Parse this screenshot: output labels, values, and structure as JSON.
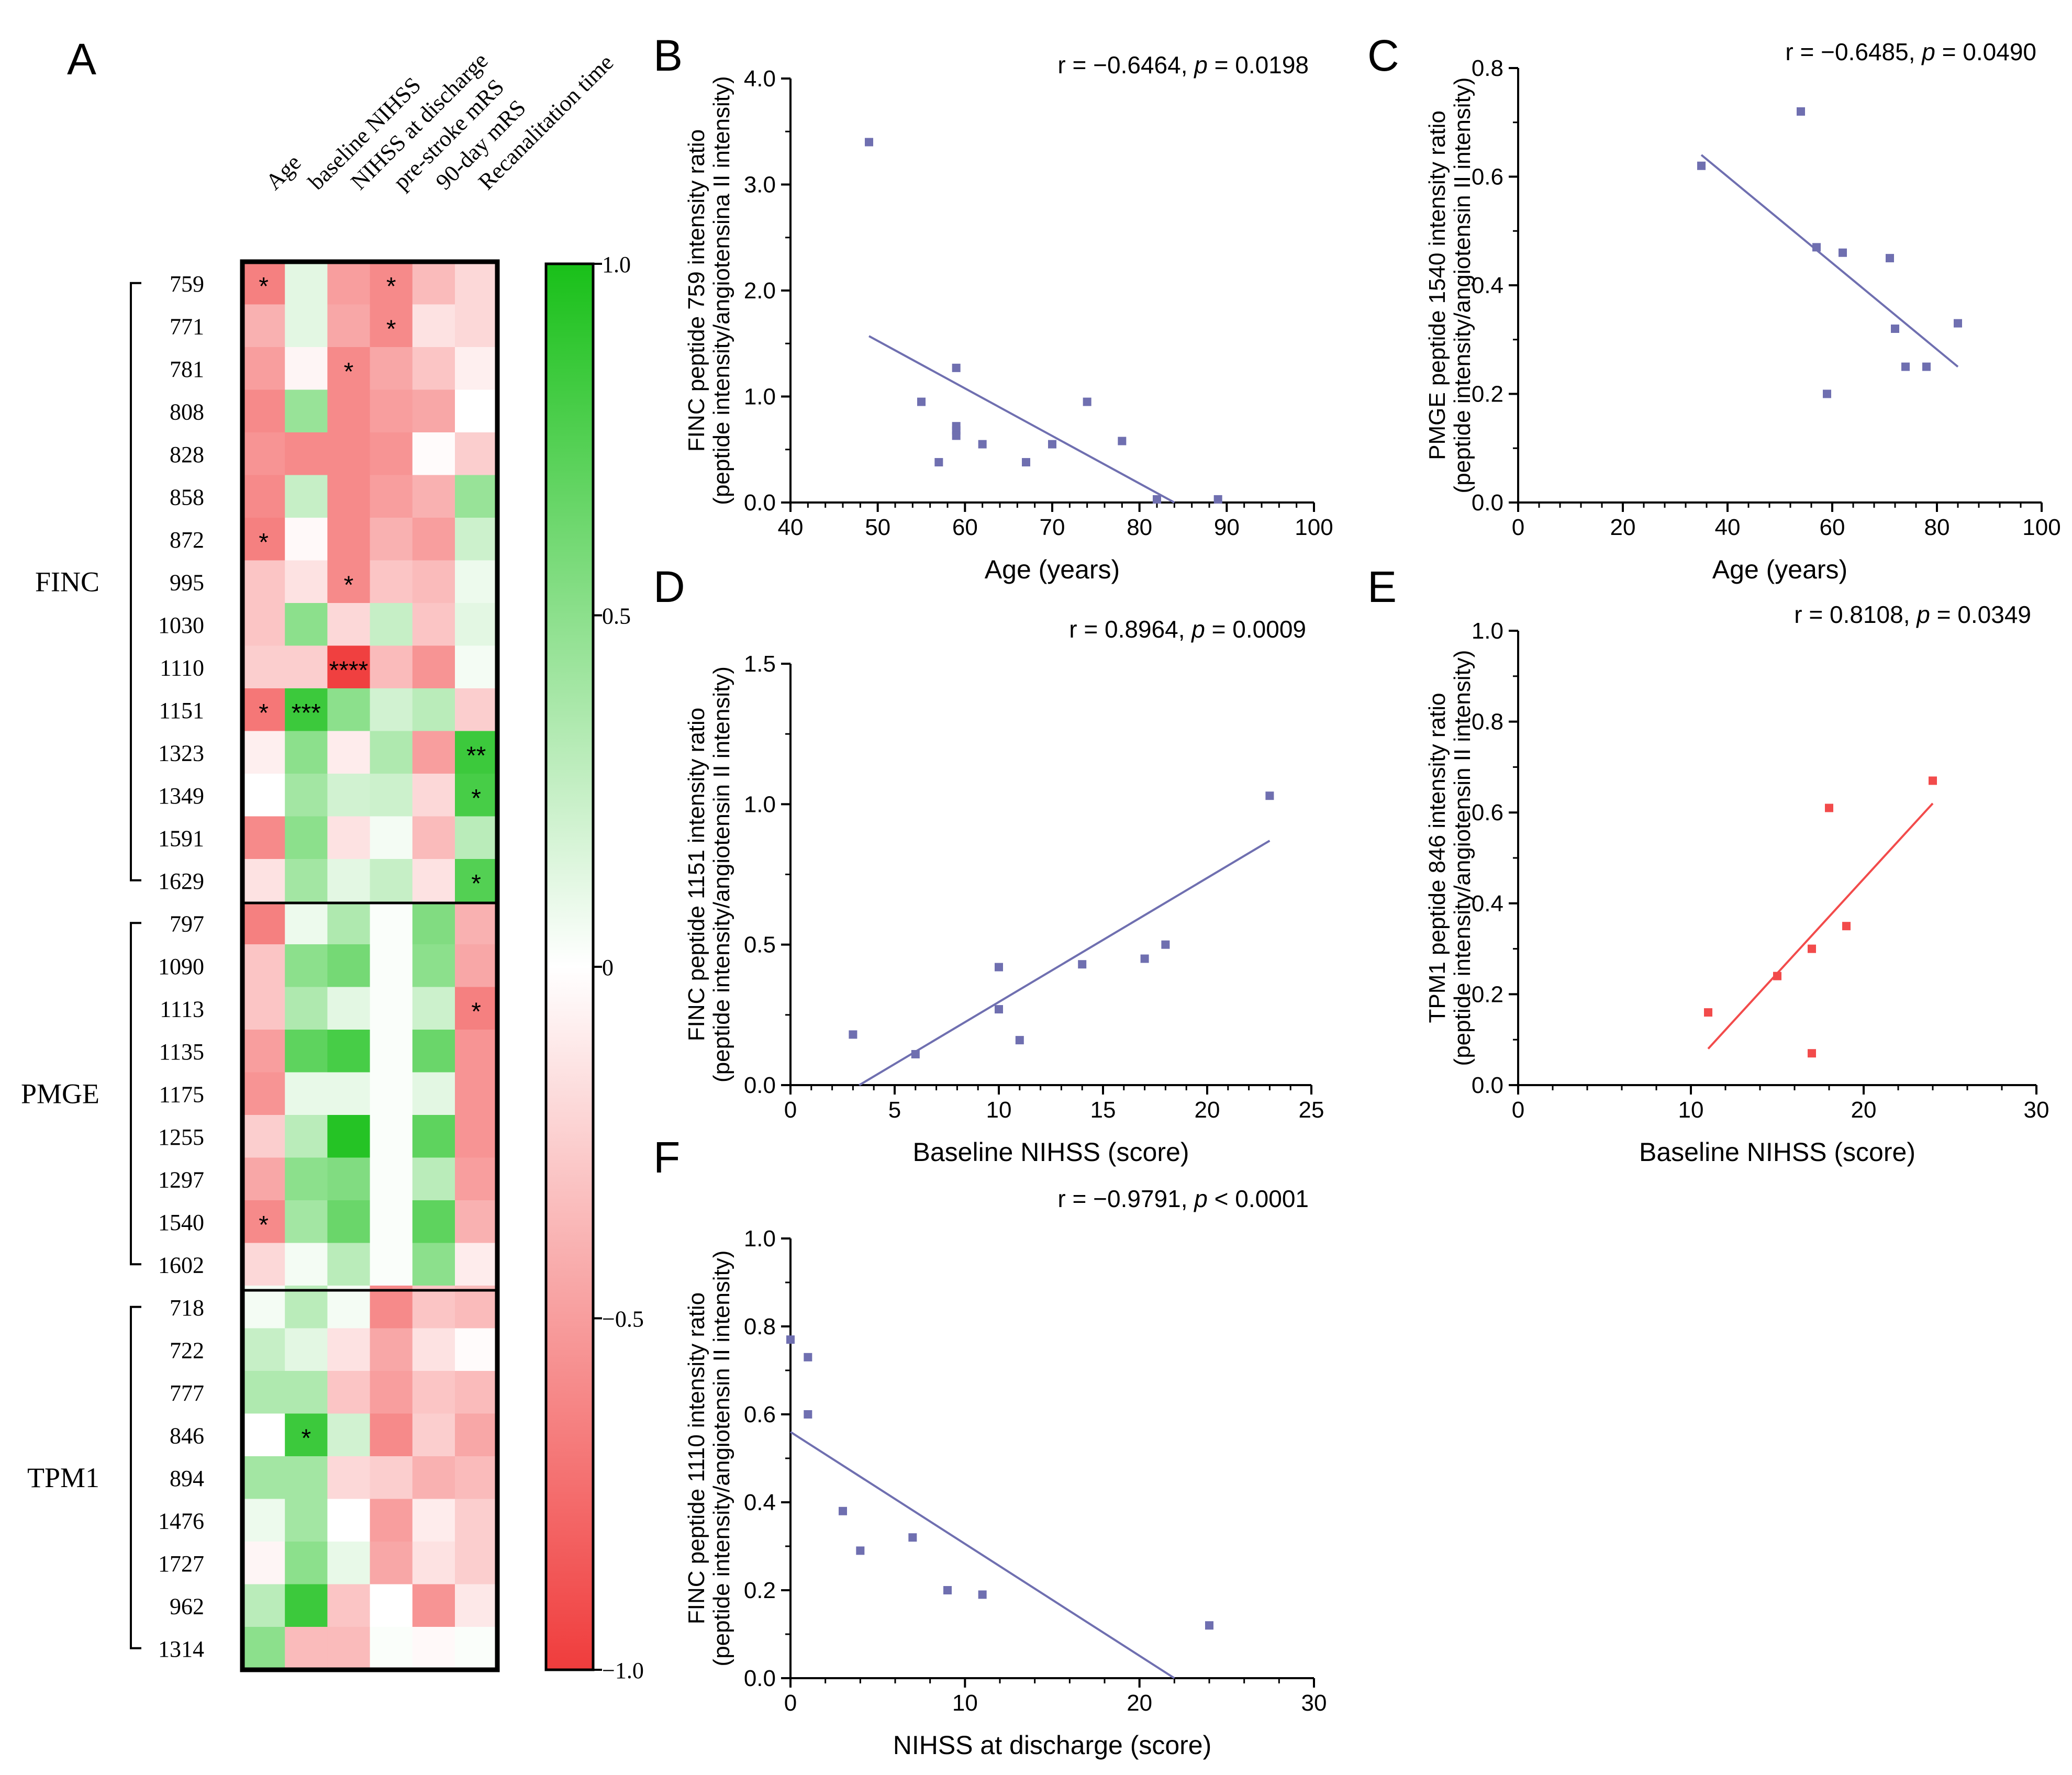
{
  "chart_data": [
    {
      "panel": "A",
      "type": "heatmap",
      "columns": [
        "Age",
        "baseline NIHSS",
        "NIHSS at discharge",
        "pre-stroke mRS",
        "90-day mRS",
        "Recanalitation time"
      ],
      "groups": [
        {
          "name": "FINC",
          "rows": [
            "759",
            "771",
            "781",
            "808",
            "828",
            "858",
            "872",
            "995",
            "1030",
            "1110",
            "1151",
            "1323",
            "1349",
            "1591",
            "1629"
          ]
        },
        {
          "name": "PMGE",
          "rows": [
            "797",
            "1090",
            "1113",
            "1135",
            "1175",
            "1255",
            "1297",
            "1540",
            "1602"
          ]
        },
        {
          "name": "TPM1",
          "rows": [
            "718",
            "722",
            "777",
            "846",
            "894",
            "1476",
            "1727",
            "962",
            "1314"
          ]
        }
      ],
      "values": [
        [
          -0.65,
          0.12,
          -0.5,
          -0.6,
          -0.35,
          -0.2
        ],
        [
          -0.4,
          0.12,
          -0.45,
          -0.6,
          -0.15,
          -0.2
        ],
        [
          -0.5,
          -0.05,
          -0.6,
          -0.45,
          -0.3,
          -0.08
        ],
        [
          -0.6,
          0.45,
          -0.6,
          -0.5,
          -0.45,
          0.0
        ],
        [
          -0.55,
          -0.6,
          -0.6,
          -0.55,
          -0.02,
          -0.25
        ],
        [
          -0.6,
          0.25,
          -0.6,
          -0.5,
          -0.4,
          0.45
        ],
        [
          -0.65,
          -0.03,
          -0.6,
          -0.4,
          -0.5,
          0.22
        ],
        [
          -0.3,
          -0.15,
          -0.6,
          -0.3,
          -0.35,
          0.08
        ],
        [
          -0.3,
          0.5,
          -0.2,
          0.25,
          -0.3,
          0.12
        ],
        [
          -0.25,
          -0.25,
          -0.98,
          -0.35,
          -0.55,
          0.05
        ],
        [
          -0.7,
          0.85,
          0.5,
          0.2,
          0.3,
          -0.25
        ],
        [
          -0.08,
          0.5,
          -0.1,
          0.35,
          -0.5,
          0.85
        ],
        [
          0.0,
          0.4,
          0.2,
          0.22,
          -0.2,
          0.8
        ],
        [
          -0.6,
          0.5,
          -0.15,
          0.05,
          -0.35,
          0.3
        ],
        [
          -0.15,
          0.4,
          0.12,
          0.25,
          -0.15,
          0.75
        ],
        [
          -0.65,
          0.08,
          0.35,
          0.02,
          0.55,
          -0.4
        ],
        [
          -0.3,
          0.5,
          0.6,
          0.02,
          0.5,
          -0.45
        ],
        [
          -0.3,
          0.35,
          0.12,
          0.02,
          0.22,
          -0.65
        ],
        [
          -0.5,
          0.7,
          0.8,
          0.02,
          0.65,
          -0.55
        ],
        [
          -0.55,
          0.1,
          0.1,
          0.02,
          0.12,
          -0.55
        ],
        [
          -0.25,
          0.3,
          0.95,
          0.02,
          0.7,
          -0.55
        ],
        [
          -0.45,
          0.5,
          0.55,
          0.02,
          0.3,
          -0.5
        ],
        [
          -0.6,
          0.4,
          0.65,
          0.02,
          0.7,
          -0.4
        ],
        [
          -0.2,
          0.05,
          0.3,
          0.02,
          0.5,
          -0.1
        ],
        [
          0.05,
          0.3,
          0.05,
          -0.6,
          -0.3,
          -0.35
        ],
        [
          0.25,
          0.12,
          -0.15,
          -0.45,
          -0.15,
          -0.02
        ],
        [
          0.35,
          0.35,
          -0.3,
          -0.5,
          -0.3,
          -0.35
        ],
        [
          0.0,
          0.85,
          0.2,
          -0.6,
          -0.25,
          -0.45
        ],
        [
          0.4,
          0.4,
          -0.2,
          -0.25,
          -0.4,
          -0.35
        ],
        [
          0.08,
          0.4,
          0.0,
          -0.5,
          -0.1,
          -0.25
        ],
        [
          -0.05,
          0.5,
          0.1,
          -0.45,
          -0.15,
          -0.25
        ],
        [
          0.3,
          0.85,
          -0.3,
          0.0,
          -0.55,
          -0.12
        ],
        [
          0.5,
          -0.35,
          -0.35,
          0.02,
          -0.03,
          0.02
        ]
      ],
      "stars": [
        {
          "row": 0,
          "col": 0,
          "text": "*"
        },
        {
          "row": 0,
          "col": 3,
          "text": "*"
        },
        {
          "row": 1,
          "col": 3,
          "text": "*"
        },
        {
          "row": 2,
          "col": 2,
          "text": "*"
        },
        {
          "row": 6,
          "col": 0,
          "text": "*"
        },
        {
          "row": 7,
          "col": 2,
          "text": "*"
        },
        {
          "row": 9,
          "col": 2,
          "text": "****"
        },
        {
          "row": 10,
          "col": 0,
          "text": "*"
        },
        {
          "row": 10,
          "col": 1,
          "text": "***"
        },
        {
          "row": 11,
          "col": 5,
          "text": "**"
        },
        {
          "row": 12,
          "col": 5,
          "text": "*"
        },
        {
          "row": 14,
          "col": 5,
          "text": "*"
        },
        {
          "row": 17,
          "col": 5,
          "text": "*"
        },
        {
          "row": 22,
          "col": 0,
          "text": "*"
        },
        {
          "row": 27,
          "col": 1,
          "text": "*"
        }
      ],
      "colorbar": {
        "min": -1.0,
        "max": 1.0,
        "ticks": [
          "1.0",
          "0.5",
          "0",
          "−0.5",
          "−1.0"
        ],
        "low_color": "#f03c3c",
        "mid_color": "#ffffff",
        "high_color": "#19c019"
      }
    },
    {
      "panel": "B",
      "type": "scatter",
      "annotation_r": "r = −0.6464, ",
      "annotation_p_label": "p",
      "annotation_p": " = 0.0198",
      "xlabel": "Age (years)",
      "ylabel_1": "FINC peptide 759 intensity ratio",
      "ylabel_2": "(peptide intensity/angiotensina II intensity)",
      "xlim": [
        40,
        100
      ],
      "ylim": [
        0,
        4
      ],
      "xticks": [
        "40",
        "50",
        "60",
        "70",
        "80",
        "90",
        "100"
      ],
      "yticks": [
        "0.0",
        "1.0",
        "2.0",
        "3.0",
        "4.0"
      ],
      "points": [
        [
          49,
          3.4
        ],
        [
          55,
          0.95
        ],
        [
          57,
          0.38
        ],
        [
          59,
          1.27
        ],
        [
          59,
          0.72
        ],
        [
          59,
          0.68
        ],
        [
          59,
          0.63
        ],
        [
          62,
          0.55
        ],
        [
          67,
          0.38
        ],
        [
          70,
          0.55
        ],
        [
          74,
          0.95
        ],
        [
          78,
          0.58
        ],
        [
          82,
          0.03
        ],
        [
          89,
          0.03
        ]
      ],
      "fit": [
        [
          49,
          1.57
        ],
        [
          84,
          0
        ]
      ],
      "color": "#6f6fb0"
    },
    {
      "panel": "C",
      "type": "scatter",
      "annotation_r": "r = −0.6485, ",
      "annotation_p_label": "p",
      "annotation_p": " = 0.0490",
      "xlabel": "Age (years)",
      "ylabel_1": "PMGE peptide 1540 intensity ratio",
      "ylabel_2": "(peptide intensity/angiotensin II intensity)",
      "xlim": [
        0,
        100
      ],
      "ylim": [
        0,
        0.8
      ],
      "xticks": [
        "0",
        "20",
        "40",
        "60",
        "80",
        "100"
      ],
      "yticks": [
        "0.0",
        "0.2",
        "0.4",
        "0.6",
        "0.8"
      ],
      "points": [
        [
          35,
          0.62
        ],
        [
          54,
          0.72
        ],
        [
          57,
          0.47
        ],
        [
          59,
          0.2
        ],
        [
          62,
          0.46
        ],
        [
          71,
          0.45
        ],
        [
          72,
          0.32
        ],
        [
          74,
          0.25
        ],
        [
          78,
          0.25
        ],
        [
          84,
          0.33
        ]
      ],
      "fit": [
        [
          35,
          0.64
        ],
        [
          84,
          0.25
        ]
      ],
      "color": "#6f6fb0"
    },
    {
      "panel": "D",
      "type": "scatter",
      "annotation_r": "r = 0.8964, ",
      "annotation_p_label": "p",
      "annotation_p": " = 0.0009",
      "xlabel": "Baseline NIHSS (score)",
      "ylabel_1": "FINC peptide 1151 intensity ratio",
      "ylabel_2": "(peptide intensity/angiotensin II intensity)",
      "xlim": [
        0,
        25
      ],
      "ylim": [
        0,
        1.5
      ],
      "xticks": [
        "0",
        "5",
        "10",
        "15",
        "20",
        "25"
      ],
      "yticks": [
        "0.0",
        "0.5",
        "1.0",
        "1.5"
      ],
      "points": [
        [
          3,
          0.18
        ],
        [
          6,
          0.11
        ],
        [
          10,
          0.42
        ],
        [
          10,
          0.27
        ],
        [
          11,
          0.16
        ],
        [
          14,
          0.43
        ],
        [
          17,
          0.45
        ],
        [
          18,
          0.5
        ],
        [
          23,
          1.03
        ]
      ],
      "fit": [
        [
          3.3,
          0
        ],
        [
          23,
          0.87
        ]
      ],
      "color": "#6f6fb0"
    },
    {
      "panel": "E",
      "type": "scatter",
      "annotation_r": "r = 0.8108, ",
      "annotation_p_label": "p",
      "annotation_p": " = 0.0349",
      "xlabel": "Baseline NIHSS (score)",
      "ylabel_1": "TPM1 peptide 846 intensity ratio",
      "ylabel_2": "(peptide intensity/angiotensin II intensity)",
      "xlim": [
        0,
        30
      ],
      "ylim": [
        0,
        1.0
      ],
      "xticks": [
        "0",
        "10",
        "20",
        "30"
      ],
      "yticks": [
        "0.0",
        "0.2",
        "0.4",
        "0.6",
        "0.8",
        "1.0"
      ],
      "points": [
        [
          11,
          0.16
        ],
        [
          15,
          0.24
        ],
        [
          17,
          0.3
        ],
        [
          17,
          0.07
        ],
        [
          18,
          0.61
        ],
        [
          19,
          0.35
        ],
        [
          24,
          0.67
        ]
      ],
      "fit": [
        [
          11,
          0.08
        ],
        [
          24,
          0.62
        ]
      ],
      "color": "#f24b4b"
    },
    {
      "panel": "F",
      "type": "scatter",
      "annotation_r": "r = −0.9791, ",
      "annotation_p_label": "p",
      "annotation_p": " < 0.0001",
      "xlabel": "NIHSS at discharge (score)",
      "ylabel_1": "FINC peptide 1110 intensity ratio",
      "ylabel_2": "(peptide intensity/angiotensin II intensity)",
      "xlim": [
        0,
        30
      ],
      "ylim": [
        0,
        1.0
      ],
      "xticks": [
        "0",
        "10",
        "20",
        "30"
      ],
      "yticks": [
        "0.0",
        "0.2",
        "0.4",
        "0.6",
        "0.8",
        "1.0"
      ],
      "points": [
        [
          0,
          0.77
        ],
        [
          1,
          0.73
        ],
        [
          1,
          0.6
        ],
        [
          3,
          0.38
        ],
        [
          4,
          0.29
        ],
        [
          7,
          0.32
        ],
        [
          9,
          0.2
        ],
        [
          11,
          0.19
        ],
        [
          24,
          0.12
        ]
      ],
      "fit": [
        [
          0,
          0.56
        ],
        [
          22,
          0
        ]
      ],
      "color": "#6f6fb0"
    }
  ]
}
